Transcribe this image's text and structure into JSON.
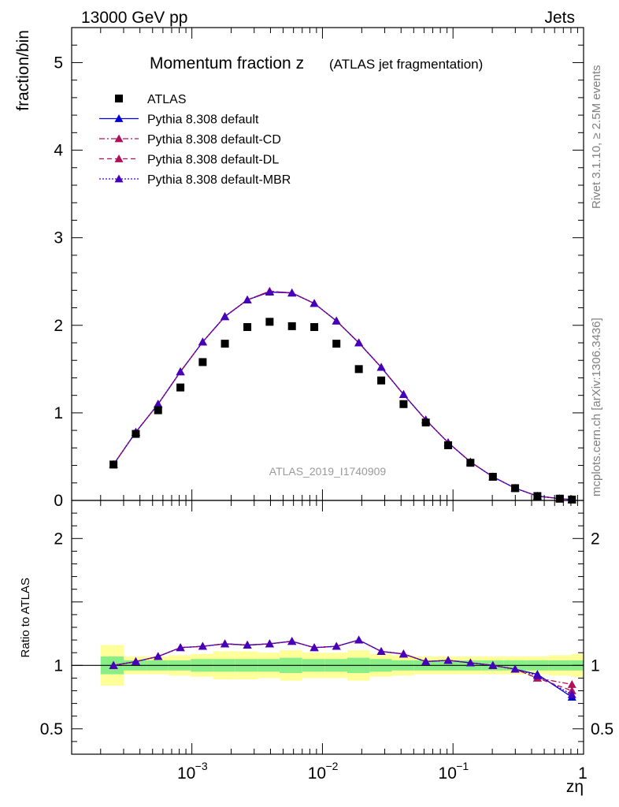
{
  "header": {
    "left": "13000 GeV pp",
    "right": "Jets"
  },
  "side_labels": {
    "rivet": "Rivet 3.1.10, ≥ 2.5M events",
    "mcplots": "mcplots.cern.ch [arXiv:1306.3436]"
  },
  "chart_data": {
    "type": "scatter",
    "title": "Momentum fraction z",
    "subtitle": "(ATLAS jet fragmentation)",
    "analysis_label": "ATLAS_2019_I1740909",
    "xlabel": "zη",
    "ylabel": "fraction/bin",
    "ratio_ylabel": "Ratio to ATLAS",
    "xscale": "log",
    "xlim": [
      0.00012,
      1.0
    ],
    "ylim": [
      0,
      5.4
    ],
    "ratio_ylim": [
      0.3,
      2.3
    ],
    "main_yticks": [
      "0",
      "1",
      "2",
      "3",
      "4",
      "5"
    ],
    "ratio_yticks": [
      "0.5",
      "1",
      "2"
    ],
    "xticks": [
      "10^-3",
      "10^-2",
      "10^-1",
      "1"
    ],
    "legend_position": "top-left",
    "x": [
      0.000251,
      0.000372,
      0.000551,
      0.000817,
      0.00121,
      0.00179,
      0.00266,
      0.00394,
      0.00584,
      0.00866,
      0.0128,
      0.019,
      0.0282,
      0.0418,
      0.0619,
      0.0918,
      0.136,
      0.202,
      0.299,
      0.443,
      0.657,
      0.815
    ],
    "series": [
      {
        "name": "ATLAS",
        "style": "data",
        "color": "#000000",
        "values": [
          0.41,
          0.76,
          1.03,
          1.29,
          1.58,
          1.79,
          1.98,
          2.04,
          1.99,
          1.98,
          1.79,
          1.5,
          1.37,
          1.1,
          0.89,
          0.63,
          0.43,
          0.27,
          0.14,
          0.05,
          0.02,
          0.01
        ]
      },
      {
        "name": "Pythia 8.308 default",
        "style": "solid",
        "color": "#0000dd",
        "values": [
          0.41,
          0.78,
          1.1,
          1.47,
          1.81,
          2.1,
          2.29,
          2.38,
          2.37,
          2.25,
          2.05,
          1.8,
          1.52,
          1.21,
          0.92,
          0.66,
          0.44,
          0.27,
          0.14,
          0.05,
          0.02,
          0.01
        ]
      },
      {
        "name": "Pythia 8.308 default-CD",
        "style": "dashdot",
        "color": "#b0105a",
        "values": [
          0.41,
          0.78,
          1.1,
          1.47,
          1.81,
          2.1,
          2.29,
          2.39,
          2.37,
          2.25,
          2.05,
          1.8,
          1.52,
          1.21,
          0.92,
          0.66,
          0.44,
          0.27,
          0.14,
          0.05,
          0.02,
          0.01
        ]
      },
      {
        "name": "Pythia 8.308 default-DL",
        "style": "dashed",
        "color": "#b0105a",
        "values": [
          0.41,
          0.78,
          1.1,
          1.47,
          1.81,
          2.1,
          2.29,
          2.39,
          2.37,
          2.25,
          2.05,
          1.8,
          1.52,
          1.21,
          0.92,
          0.66,
          0.44,
          0.27,
          0.14,
          0.05,
          0.02,
          0.01
        ]
      },
      {
        "name": "Pythia 8.308 default-MBR",
        "style": "dotted",
        "color": "#4400bb",
        "values": [
          0.41,
          0.78,
          1.1,
          1.47,
          1.81,
          2.1,
          2.29,
          2.38,
          2.37,
          2.25,
          2.05,
          1.8,
          1.52,
          1.21,
          0.92,
          0.66,
          0.44,
          0.27,
          0.14,
          0.05,
          0.02,
          0.01
        ]
      }
    ],
    "ratio_series": [
      {
        "name": "Pythia 8.308 default",
        "style": "solid",
        "color": "#0000dd",
        "values": [
          1.0,
          1.03,
          1.07,
          1.14,
          1.15,
          1.17,
          1.16,
          1.17,
          1.19,
          1.14,
          1.15,
          1.2,
          1.11,
          1.09,
          1.03,
          1.04,
          1.02,
          1.0,
          0.97,
          0.93,
          0.75
        ]
      },
      {
        "name": "Pythia 8.308 default-CD",
        "style": "dashdot",
        "color": "#b0105a",
        "values": [
          1.0,
          1.03,
          1.07,
          1.14,
          1.15,
          1.17,
          1.16,
          1.17,
          1.19,
          1.14,
          1.15,
          1.2,
          1.11,
          1.09,
          1.03,
          1.04,
          1.02,
          1.0,
          0.97,
          0.9,
          0.85
        ]
      },
      {
        "name": "Pythia 8.308 default-DL",
        "style": "dashed",
        "color": "#b0105a",
        "values": [
          1.0,
          1.03,
          1.07,
          1.14,
          1.15,
          1.17,
          1.16,
          1.17,
          1.19,
          1.14,
          1.15,
          1.2,
          1.11,
          1.09,
          1.03,
          1.04,
          1.02,
          1.0,
          0.97,
          0.9,
          0.8
        ]
      },
      {
        "name": "Pythia 8.308 default-MBR",
        "style": "dotted",
        "color": "#4400bb",
        "values": [
          1.0,
          1.03,
          1.07,
          1.14,
          1.15,
          1.17,
          1.16,
          1.17,
          1.19,
          1.14,
          1.15,
          1.2,
          1.11,
          1.09,
          1.03,
          1.04,
          1.02,
          1.0,
          0.97,
          0.92,
          0.77
        ]
      }
    ],
    "ratio_x": [
      0.000251,
      0.000372,
      0.000551,
      0.000817,
      0.00121,
      0.00179,
      0.00266,
      0.00394,
      0.00584,
      0.00866,
      0.0128,
      0.019,
      0.0282,
      0.0418,
      0.0619,
      0.0918,
      0.136,
      0.202,
      0.299,
      0.443,
      0.815
    ],
    "uncertainty_bands": {
      "edges": [
        0.0002,
        0.0003,
        0.00045,
        0.00066,
        0.00098,
        0.00145,
        0.00215,
        0.0032,
        0.0047,
        0.007,
        0.0104,
        0.0155,
        0.023,
        0.034,
        0.05,
        0.075,
        0.11,
        0.165,
        0.245,
        0.365,
        0.54,
        0.8,
        1.0
      ],
      "stat_half_width": [
        0.07,
        0.04,
        0.04,
        0.04,
        0.05,
        0.05,
        0.05,
        0.05,
        0.06,
        0.05,
        0.05,
        0.06,
        0.05,
        0.04,
        0.04,
        0.04,
        0.04,
        0.04,
        0.04,
        0.04,
        0.04,
        0.04
      ],
      "total_half_width": [
        0.16,
        0.07,
        0.07,
        0.08,
        0.09,
        0.11,
        0.11,
        0.1,
        0.12,
        0.1,
        0.1,
        0.12,
        0.09,
        0.08,
        0.07,
        0.07,
        0.07,
        0.07,
        0.07,
        0.07,
        0.08,
        0.09
      ],
      "stat_color": "#88ee88",
      "total_color": "#ffff99"
    }
  }
}
